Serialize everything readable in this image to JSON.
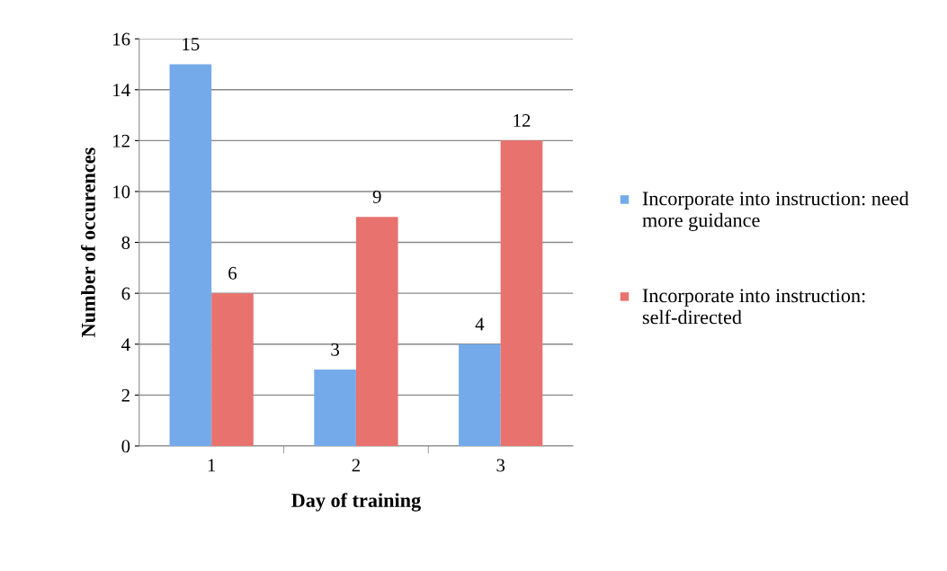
{
  "chart_data": {
    "type": "bar",
    "xlabel": "Day of training",
    "ylabel": "Number of occurences",
    "categories": [
      "1",
      "2",
      "3"
    ],
    "series": [
      {
        "name": "Incorporate into instruction: need more guidance",
        "color": "#74aaea",
        "values": [
          15,
          3,
          4
        ]
      },
      {
        "name": "Incorporate into instruction: self-directed",
        "color": "#e8726d",
        "values": [
          6,
          9,
          12
        ]
      }
    ],
    "ylim": [
      0,
      16
    ],
    "yticks": [
      0,
      2,
      4,
      6,
      8,
      10,
      12,
      14,
      16
    ],
    "grid": "y",
    "legend": "right",
    "data_labels": true
  }
}
